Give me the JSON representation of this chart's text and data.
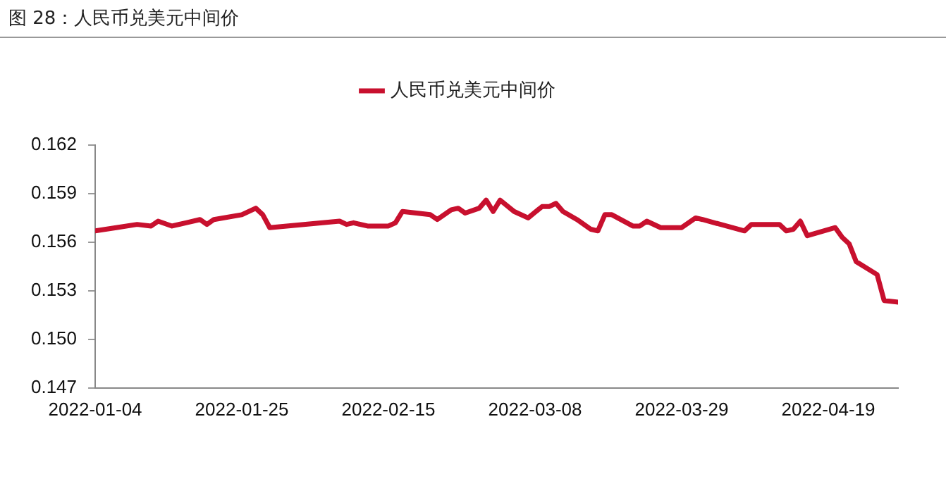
{
  "chart_data": {
    "type": "line",
    "title": "图 28：人民币兑美元中间价",
    "x": [
      "2022-01-04",
      "2022-01-07",
      "2022-01-10",
      "2022-01-12",
      "2022-01-13",
      "2022-01-15",
      "2022-01-17",
      "2022-01-19",
      "2022-01-20",
      "2022-01-21",
      "2022-01-25",
      "2022-01-27",
      "2022-01-28",
      "2022-01-29",
      "2022-02-08",
      "2022-02-09",
      "2022-02-10",
      "2022-02-12",
      "2022-02-15",
      "2022-02-16",
      "2022-02-17",
      "2022-02-21",
      "2022-02-22",
      "2022-02-24",
      "2022-02-25",
      "2022-02-26",
      "2022-02-28",
      "2022-03-01",
      "2022-03-02",
      "2022-03-03",
      "2022-03-05",
      "2022-03-07",
      "2022-03-09",
      "2022-03-10",
      "2022-03-11",
      "2022-03-12",
      "2022-03-14",
      "2022-03-16",
      "2022-03-17",
      "2022-03-18",
      "2022-03-19",
      "2022-03-22",
      "2022-03-23",
      "2022-03-24",
      "2022-03-26",
      "2022-03-29",
      "2022-03-31",
      "2022-04-01",
      "2022-04-07",
      "2022-04-08",
      "2022-04-12",
      "2022-04-13",
      "2022-04-14",
      "2022-04-15",
      "2022-04-16",
      "2022-04-20",
      "2022-04-21",
      "2022-04-22",
      "2022-04-23",
      "2022-04-26",
      "2022-04-27",
      "2022-04-29"
    ],
    "series": [
      {
        "name": "人民币兑美元中间价",
        "color": "#c8102e",
        "values": [
          0.1567,
          0.1569,
          0.1571,
          0.157,
          0.1573,
          0.157,
          0.1572,
          0.1574,
          0.1571,
          0.1574,
          0.1577,
          0.1581,
          0.1577,
          0.1569,
          0.1573,
          0.1571,
          0.1572,
          0.157,
          0.157,
          0.1572,
          0.1579,
          0.1577,
          0.1574,
          0.158,
          0.1581,
          0.1578,
          0.1581,
          0.1586,
          0.1579,
          0.1586,
          0.1579,
          0.1575,
          0.1582,
          0.1582,
          0.1584,
          0.1579,
          0.1574,
          0.1568,
          0.1567,
          0.1577,
          0.1577,
          0.157,
          0.157,
          0.1573,
          0.1569,
          0.1569,
          0.1575,
          0.1574,
          0.1567,
          0.1571,
          0.1571,
          0.1567,
          0.1568,
          0.1573,
          0.1564,
          0.1569,
          0.1563,
          0.1559,
          0.1548,
          0.154,
          0.1524,
          0.1523
        ]
      }
    ],
    "xlim": [
      "2022-01-04",
      "2022-04-29"
    ],
    "xticks": [
      "2022-01-04",
      "2022-01-25",
      "2022-02-15",
      "2022-03-08",
      "2022-03-29",
      "2022-04-19"
    ],
    "ylim": [
      0.147,
      0.162
    ],
    "yticks": [
      {
        "value": 0.147,
        "label": "0.147"
      },
      {
        "value": 0.15,
        "label": "0.150"
      },
      {
        "value": 0.153,
        "label": "0.153"
      },
      {
        "value": 0.156,
        "label": "0.156"
      },
      {
        "value": 0.159,
        "label": "0.159"
      },
      {
        "value": 0.162,
        "label": "0.162"
      }
    ],
    "grid": false,
    "legend": "top",
    "marker": "none",
    "line_style": "solid"
  }
}
